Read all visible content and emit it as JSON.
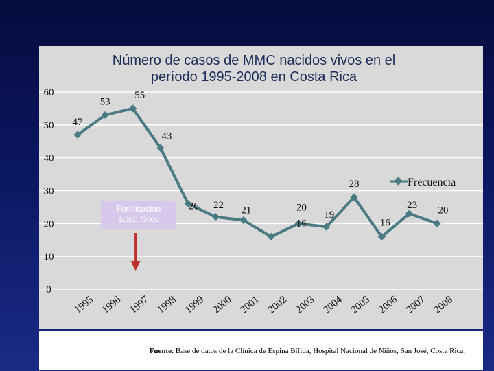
{
  "chart_data": {
    "type": "line",
    "title_line1": "Número de casos de MMC nacidos vivos en el",
    "title_line2": "período 1995-2008 en Costa Rica",
    "categories": [
      "1995",
      "1996",
      "1997",
      "1998",
      "1999",
      "2000",
      "2001",
      "2002",
      "2003",
      "2004",
      "2005",
      "2006",
      "2007",
      "2008"
    ],
    "series": [
      {
        "name": "Frecuencia",
        "values": [
          47,
          53,
          55,
          43,
          26,
          22,
          21,
          16,
          20,
          19,
          28,
          16,
          23,
          20
        ]
      }
    ],
    "y_ticks": [
      "60",
      "50",
      "40",
      "30",
      "20",
      "10",
      "0"
    ],
    "ylim": [
      0,
      60
    ],
    "legend": "Frecuencia",
    "annotation_line1": "Fortificación",
    "annotation_line2": "ácido fólico",
    "annotation_year": "1997",
    "line_color": "#4a7a82",
    "arrow_color": "#c0302a"
  },
  "source": {
    "label": "Fuente",
    "text": ": Base de datos de la Clínica de Espina Bífida, Hospital Nacional de Niños, San José, Costa Rica."
  }
}
